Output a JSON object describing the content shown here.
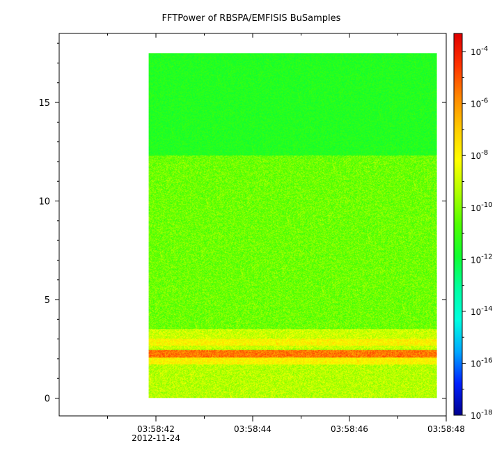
{
  "chart_data": {
    "type": "heatmap",
    "title": "FFTPower of RBSPA/EMFISIS  BuSamples",
    "xlabel": "",
    "ylabel": "",
    "x_ticks": [
      {
        "label": "03:58:42",
        "sublabel": "2012-11-24",
        "t": 42
      },
      {
        "label": "03:58:44",
        "t": 44
      },
      {
        "label": "03:58:46",
        "t": 46
      },
      {
        "label": "03:58:48",
        "t": 48
      }
    ],
    "x_minor_ticks": [
      41,
      43,
      45,
      47
    ],
    "xlim": [
      40.0,
      48.0
    ],
    "x_data_range": [
      41.85,
      47.8
    ],
    "y_ticks": [
      0,
      5,
      10,
      15
    ],
    "ylim": [
      -0.9,
      18.5
    ],
    "y_data_range": [
      0.0,
      17.5
    ],
    "z_scale": "log",
    "colorbar": {
      "location": "right",
      "range_log10": [
        -18,
        -3.3
      ],
      "tick_exponents": [
        -4,
        -6,
        -8,
        -10,
        -12,
        -14,
        -16,
        -18
      ],
      "tick_base": "10",
      "colors": [
        "#00008f",
        "#0020ff",
        "#00a8ff",
        "#00ffe0",
        "#00ffa0",
        "#10ff30",
        "#50ff00",
        "#b0ff00",
        "#ffff00",
        "#ffcc00",
        "#ff8800",
        "#ff3300",
        "#e00000"
      ]
    },
    "bands": [
      {
        "y": [
          12.3,
          17.5
        ],
        "log10_power": -11.5,
        "note": "upper flat region"
      },
      {
        "y": [
          3.5,
          12.3
        ],
        "log10_power": -10.3
      },
      {
        "y": [
          3.0,
          3.5
        ],
        "log10_power": -9.0
      },
      {
        "y": [
          2.65,
          3.0
        ],
        "log10_power": -8.0
      },
      {
        "y": [
          2.5,
          2.65
        ],
        "log10_power": -9.0
      },
      {
        "y": [
          2.05,
          2.45
        ],
        "log10_power": -5.5
      },
      {
        "y": [
          1.7,
          2.05
        ],
        "log10_power": -8.0
      },
      {
        "y": [
          0.0,
          1.7
        ],
        "log10_power": -9.3
      }
    ],
    "grid": false
  }
}
